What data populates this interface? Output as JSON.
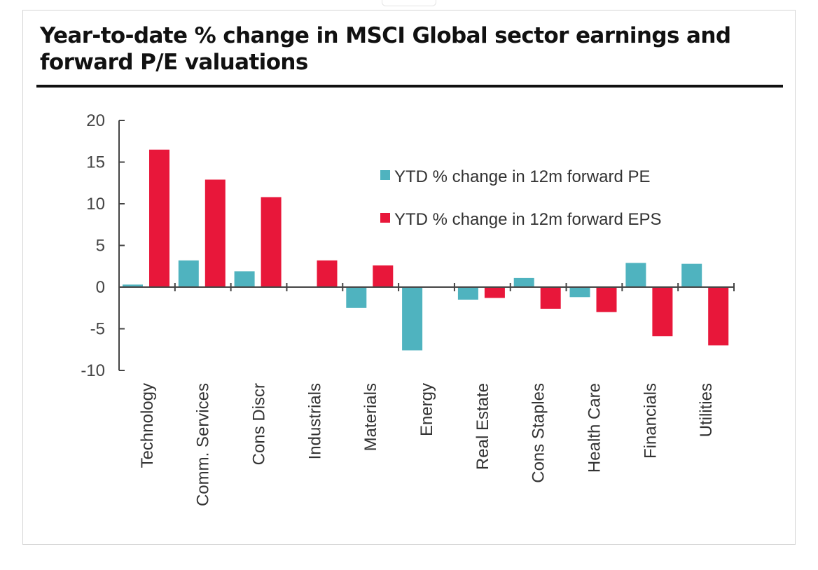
{
  "chart_data": {
    "type": "bar",
    "title": "Year-to-date % change in MSCI Global sector earnings and forward P/E valuations",
    "xlabel": "",
    "ylabel": "",
    "ylim": [
      -10,
      20
    ],
    "yticks": [
      20,
      15,
      10,
      5,
      0,
      -5,
      -10
    ],
    "grid": false,
    "legend_position": "top-right",
    "categories": [
      "Technology",
      "Comm. Services",
      "Cons Discr",
      "Industrials",
      "Materials",
      "Energy",
      "Real Estate",
      "Cons Staples",
      "Health Care",
      "Financials",
      "Utilities"
    ],
    "series": [
      {
        "name": "YTD % change in 12m forward PE",
        "color": "#4fb3bf",
        "values": [
          0.3,
          3.2,
          1.9,
          0.0,
          -2.5,
          -7.6,
          -1.5,
          1.1,
          -1.2,
          2.9,
          2.8
        ]
      },
      {
        "name": "YTD % change in 12m forward EPS",
        "color": "#e8173a",
        "values": [
          16.5,
          12.9,
          10.8,
          3.2,
          2.6,
          0.0,
          -1.3,
          -2.6,
          -3.0,
          -5.9,
          -7.0
        ]
      }
    ]
  }
}
